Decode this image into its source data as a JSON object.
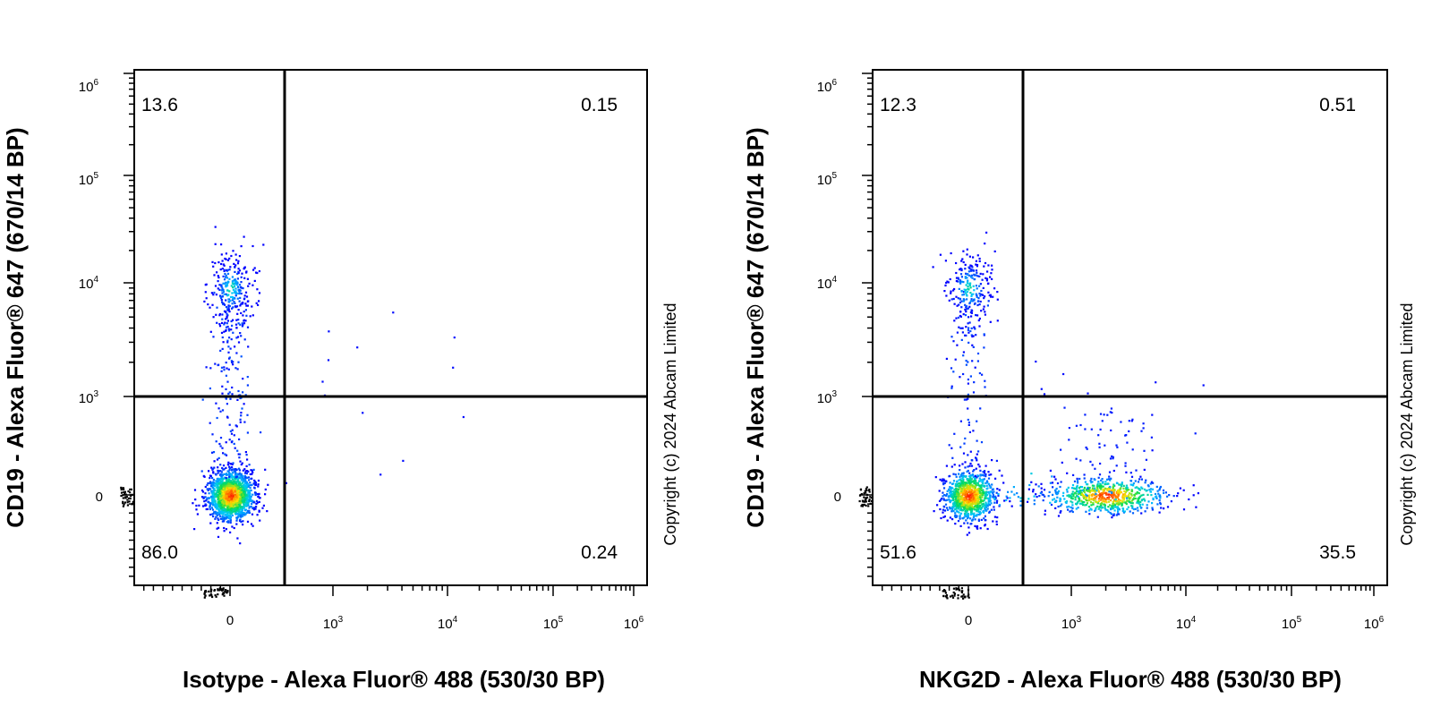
{
  "chart_data": [
    {
      "type": "scatter",
      "xlabel": "Isotype - Alexa Fluor® 488 (530/30 BP)",
      "ylabel": "CD19 - Alexa Fluor® 647 (670/14 BP)",
      "x_ticks": [
        {
          "base": "0",
          "exp": ""
        },
        {
          "base": "10",
          "exp": "3"
        },
        {
          "base": "10",
          "exp": "4"
        },
        {
          "base": "10",
          "exp": "5"
        },
        {
          "base": "10",
          "exp": "6"
        }
      ],
      "y_ticks": [
        {
          "base": "0",
          "exp": ""
        },
        {
          "base": "10",
          "exp": "3"
        },
        {
          "base": "10",
          "exp": "4"
        },
        {
          "base": "10",
          "exp": "5"
        },
        {
          "base": "10",
          "exp": "6"
        }
      ],
      "quadrants": {
        "upper_left": "13.6",
        "upper_right": "0.15",
        "lower_left": "86.0",
        "lower_right": "0.24"
      },
      "gate": {
        "x": 500,
        "y": 1000
      },
      "populations": [
        {
          "name": "",
          "x_center": 0,
          "y_center": 0,
          "share": 0.86
        },
        {
          "name": "",
          "x_center": 0,
          "y_center": 9000,
          "share": 0.136
        }
      ],
      "copyright": "Copyright (c) 2024 Abcam Limited"
    },
    {
      "type": "scatter",
      "xlabel": "NKG2D - Alexa Fluor® 488 (530/30 BP)",
      "ylabel": "CD19 - Alexa Fluor® 647 (670/14 BP)",
      "x_ticks": [
        {
          "base": "0",
          "exp": ""
        },
        {
          "base": "10",
          "exp": "3"
        },
        {
          "base": "10",
          "exp": "4"
        },
        {
          "base": "10",
          "exp": "5"
        },
        {
          "base": "10",
          "exp": "6"
        }
      ],
      "y_ticks": [
        {
          "base": "0",
          "exp": ""
        },
        {
          "base": "10",
          "exp": "3"
        },
        {
          "base": "10",
          "exp": "4"
        },
        {
          "base": "10",
          "exp": "5"
        },
        {
          "base": "10",
          "exp": "6"
        }
      ],
      "quadrants": {
        "upper_left": "12.3",
        "upper_right": "0.51",
        "lower_left": "51.6",
        "lower_right": "35.5"
      },
      "gate": {
        "x": 500,
        "y": 1000
      },
      "populations": [
        {
          "name": "",
          "x_center": 0,
          "y_center": 0,
          "share": 0.516
        },
        {
          "name": "",
          "x_center": 2000,
          "y_center": 0,
          "share": 0.355
        },
        {
          "name": "",
          "x_center": 0,
          "y_center": 9000,
          "share": 0.123
        }
      ],
      "copyright": "Copyright (c) 2024 Abcam Limited"
    }
  ],
  "colors": {
    "axis": "#000000",
    "low_density": "#0000ff",
    "high_density": "#ff0000"
  }
}
